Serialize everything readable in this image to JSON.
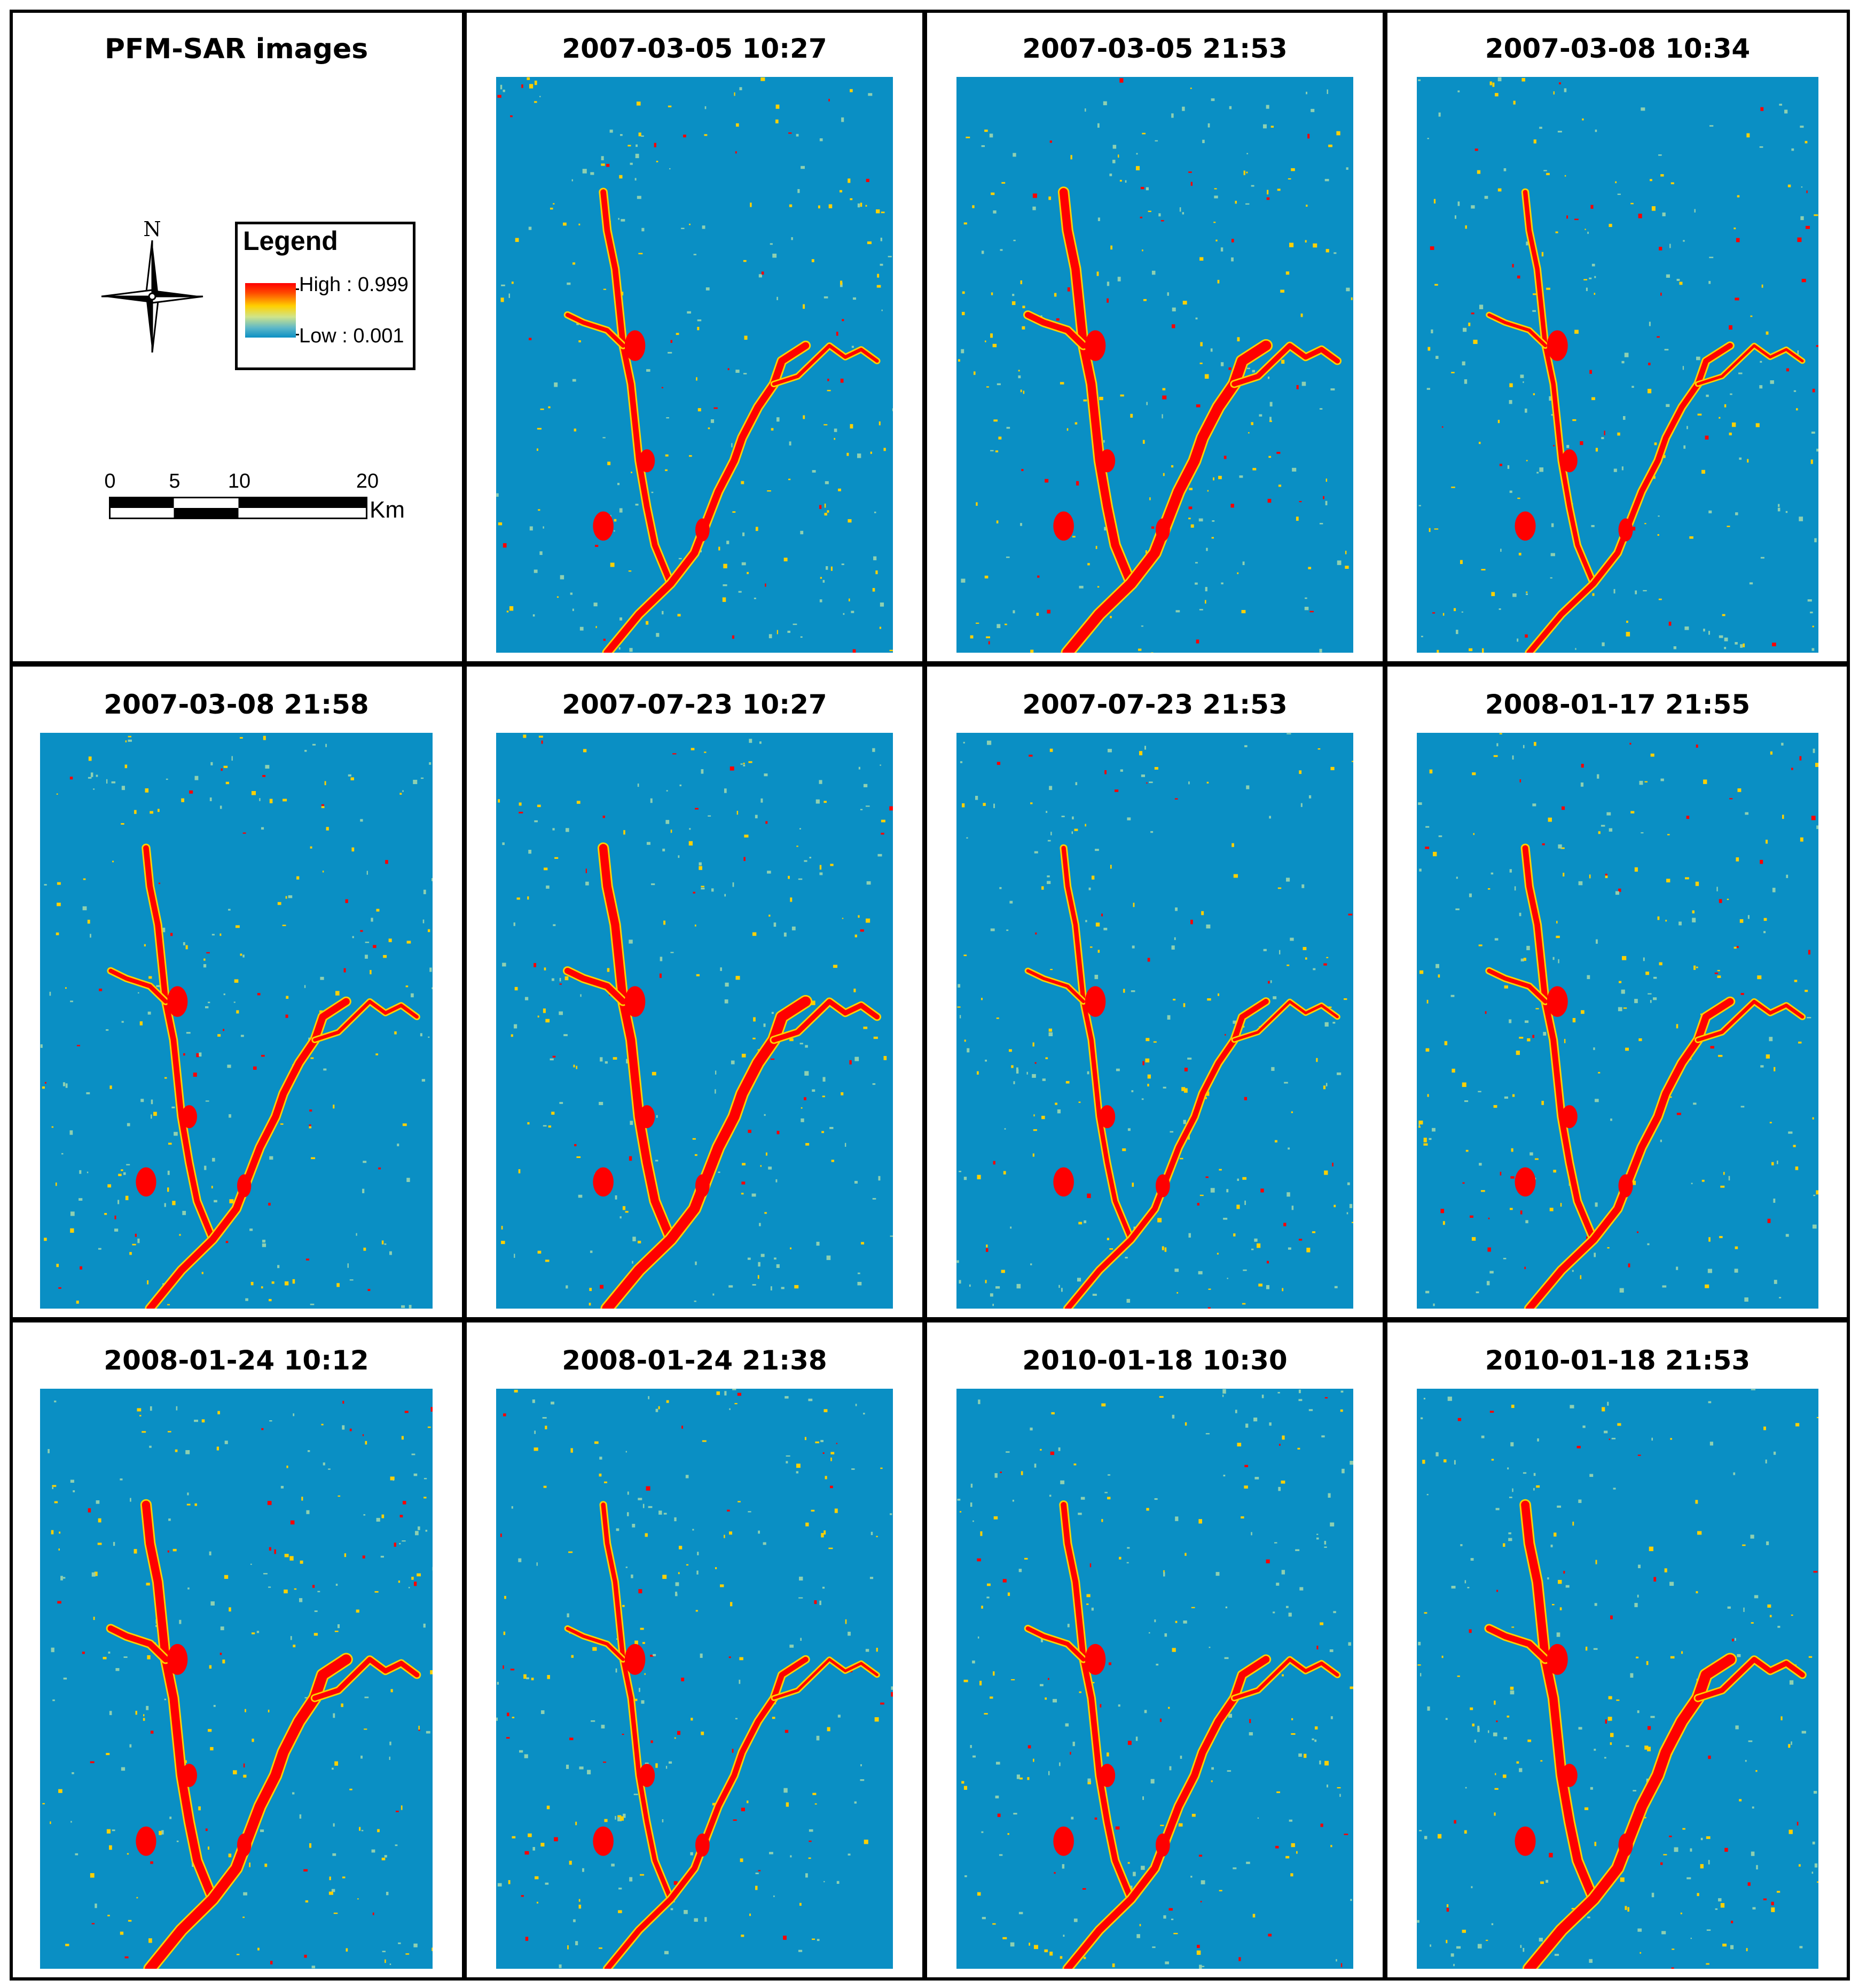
{
  "legend_panel": {
    "title": "PFM-SAR images",
    "legend_title": "Legend",
    "high_label": "High : 0.999",
    "low_label": "Low : 0.001",
    "north_label": "N",
    "scale_ticks": [
      "0",
      "5",
      "10",
      "20"
    ],
    "scale_unit": "Km"
  },
  "colors": {
    "background_low": "#0a8fc4",
    "high": "#ff0000",
    "mid": "#ffd000",
    "low_mid": "#8fd0b0"
  },
  "panels": [
    {
      "title": "2007-03-05 10:27"
    },
    {
      "title": "2007-03-05 21:53"
    },
    {
      "title": "2007-03-08 10:34"
    },
    {
      "title": "2007-03-08 21:58"
    },
    {
      "title": "2007-07-23 10:27"
    },
    {
      "title": "2007-07-23 21:53"
    },
    {
      "title": "2008-01-17 21:55"
    },
    {
      "title": "2008-01-24 10:12"
    },
    {
      "title": "2008-01-24 21:38"
    },
    {
      "title": "2010-01-18 10:30"
    },
    {
      "title": "2010-01-18 21:53"
    }
  ]
}
